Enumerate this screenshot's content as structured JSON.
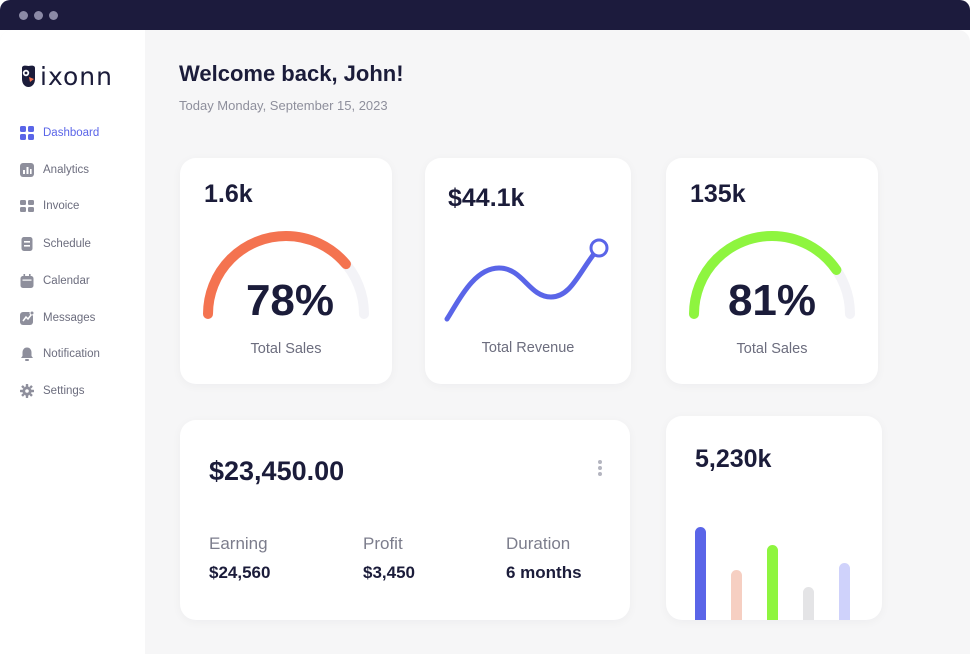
{
  "brand": {
    "name": "ixonn"
  },
  "sidebar": {
    "items": [
      {
        "label": "Dashboard",
        "icon": "grid-icon",
        "active": true
      },
      {
        "label": "Analytics",
        "icon": "bar-chart-icon",
        "active": false
      },
      {
        "label": "Invoice",
        "icon": "invoice-icon",
        "active": false
      },
      {
        "label": "Schedule",
        "icon": "schedule-icon",
        "active": false
      },
      {
        "label": "Calendar",
        "icon": "calendar-icon",
        "active": false
      },
      {
        "label": "Messages",
        "icon": "messages-icon",
        "active": false
      },
      {
        "label": "Notification",
        "icon": "bell-icon",
        "active": false
      },
      {
        "label": "Settings",
        "icon": "gear-icon",
        "active": false
      }
    ]
  },
  "header": {
    "title": "Welcome back, John!",
    "date": "Today Monday, September 15, 2023"
  },
  "cards": {
    "sales1": {
      "value": "1.6k",
      "percent": "78%",
      "percent_value": 78,
      "label": "Total Sales",
      "color": "#f47350"
    },
    "revenue": {
      "value": "$44.1k",
      "label": "Total Revenue",
      "color": "#5a65e8"
    },
    "sales2": {
      "value": "135k",
      "percent": "81%",
      "percent_value": 81,
      "label": "Total Sales",
      "color": "#8ef53f"
    }
  },
  "earnings": {
    "total": "$23,450.00",
    "stats": [
      {
        "label": "Earning",
        "value": "$24,560"
      },
      {
        "label": "Profit",
        "value": "$3,450"
      },
      {
        "label": "Duration",
        "value": "6 months"
      }
    ]
  },
  "bars_card": {
    "value": "5,230k",
    "bars": [
      {
        "value": 125,
        "color": "#5a65e8"
      },
      {
        "value": 82,
        "color": "#f6cfc2"
      },
      {
        "value": 107,
        "color": "#8ef53f"
      },
      {
        "value": 65,
        "color": "#e4e4e6"
      },
      {
        "value": 89,
        "color": "#cfd2fb"
      }
    ]
  },
  "colors": {
    "accent": "#5a65e8",
    "sidebar_bg": "#ffffff",
    "content_bg": "#f6f6f7",
    "title_bar": "#1c1b3d"
  }
}
